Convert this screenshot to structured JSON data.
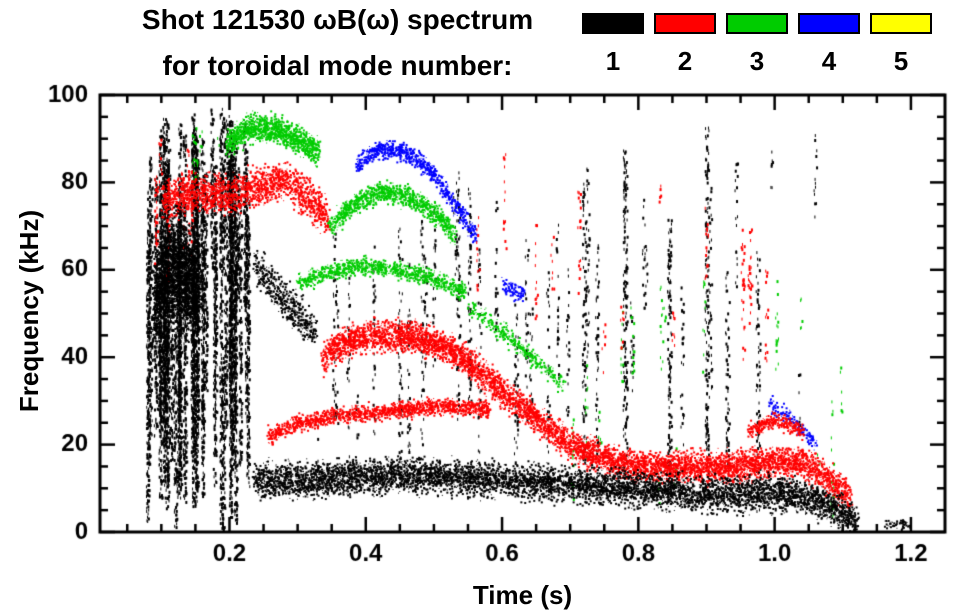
{
  "title": "Shot 121530 ωB(ω) spectrum",
  "subtitle": "for toroidal mode number:",
  "legend": {
    "items": [
      {
        "label": "1",
        "color": "#000000"
      },
      {
        "label": "2",
        "color": "#ff0000"
      },
      {
        "label": "3",
        "color": "#00cc00"
      },
      {
        "label": "4",
        "color": "#0000ff"
      },
      {
        "label": "5",
        "color": "#ffff00"
      }
    ]
  },
  "chart_data": {
    "type": "scatter",
    "title": "Shot 121530 ωB(ω) spectrum",
    "subtitle": "for toroidal mode number:",
    "xlabel": "Time (s)",
    "ylabel": "Frequency (kHz)",
    "xlim": [
      0.01,
      1.25
    ],
    "ylim": [
      0,
      100
    ],
    "xticks": [
      0.2,
      0.4,
      0.6,
      0.8,
      1.0,
      1.2
    ],
    "xtick_labels": [
      "0.2",
      "0.4",
      "0.6",
      "0.8",
      "1.0",
      "1.2"
    ],
    "yticks": [
      0,
      20,
      40,
      60,
      80,
      100
    ],
    "ytick_labels": [
      "0",
      "20",
      "40",
      "60",
      "80",
      "100"
    ],
    "xminor": 0.05,
    "yminor": 5,
    "grid": false,
    "legend_position": "top-right",
    "mode_colors": {
      "1": "#000000",
      "2": "#ff0000",
      "3": "#00cc00",
      "4": "#0000ff",
      "5": "#ffff00"
    },
    "features": [
      {
        "mode": 1,
        "type": "bursts",
        "t0": 0.078,
        "t1": 0.24,
        "f0": 0,
        "f1": 98,
        "cols": 62,
        "minH": 20,
        "maxH": 88,
        "density": 3.0
      },
      {
        "mode": 1,
        "type": "bursts",
        "t0": 0.28,
        "t1": 1.06,
        "f0": 8,
        "f1": 92,
        "cols": 34,
        "minH": 8,
        "maxH": 55,
        "density": 0.9
      },
      {
        "mode": 1,
        "type": "column",
        "t": 0.78,
        "f0": 8,
        "f1": 88,
        "density": 2.2
      },
      {
        "mode": 1,
        "type": "column",
        "t": 0.845,
        "f0": 8,
        "f1": 72,
        "density": 2.0
      },
      {
        "mode": 1,
        "type": "column",
        "t": 0.9,
        "f0": 8,
        "f1": 95,
        "density": 1.6
      },
      {
        "mode": 1,
        "type": "column",
        "t": 0.93,
        "f0": 8,
        "f1": 60,
        "density": 1.2
      },
      {
        "mode": 1,
        "type": "column",
        "t": 0.72,
        "f0": 10,
        "f1": 80,
        "density": 1.4
      },
      {
        "mode": 1,
        "type": "column",
        "t": 0.975,
        "f0": 5,
        "f1": 65,
        "density": 1.2
      },
      {
        "mode": 1,
        "type": "column",
        "t": 0.62,
        "f0": 10,
        "f1": 55,
        "density": 1.0
      },
      {
        "mode": 1,
        "type": "column",
        "t": 0.45,
        "f0": 12,
        "f1": 70,
        "density": 0.9
      },
      {
        "mode": 3,
        "type": "bursts",
        "t0": 0.12,
        "t1": 0.2,
        "f0": 80,
        "f1": 97,
        "cols": 5,
        "minH": 5,
        "maxH": 12,
        "density": 0.8
      },
      {
        "mode": 3,
        "type": "band",
        "pts": [
          [
            0.195,
            89
          ],
          [
            0.23,
            93
          ],
          [
            0.27,
            92
          ],
          [
            0.31,
            89
          ],
          [
            0.33,
            87
          ]
        ],
        "w": 3.5,
        "n": 1200
      },
      {
        "mode": 3,
        "type": "band",
        "pts": [
          [
            0.345,
            70
          ],
          [
            0.38,
            75
          ],
          [
            0.42,
            78
          ],
          [
            0.46,
            77
          ],
          [
            0.5,
            73
          ],
          [
            0.53,
            68
          ]
        ],
        "w": 2.8,
        "n": 1000
      },
      {
        "mode": 3,
        "type": "band",
        "pts": [
          [
            0.3,
            57
          ],
          [
            0.35,
            60
          ],
          [
            0.4,
            61
          ],
          [
            0.45,
            60
          ],
          [
            0.5,
            58
          ],
          [
            0.545,
            55
          ]
        ],
        "w": 2.2,
        "n": 900
      },
      {
        "mode": 3,
        "type": "band",
        "pts": [
          [
            0.55,
            52
          ],
          [
            0.6,
            46
          ],
          [
            0.65,
            39
          ],
          [
            0.69,
            34
          ]
        ],
        "w": 2.5,
        "n": 320
      },
      {
        "mode": 3,
        "type": "bursts",
        "t0": 0.7,
        "t1": 1.12,
        "f0": 2,
        "f1": 62,
        "cols": 16,
        "minH": 5,
        "maxH": 28,
        "density": 0.7
      },
      {
        "mode": 4,
        "type": "band",
        "pts": [
          [
            0.385,
            84
          ],
          [
            0.42,
            88
          ],
          [
            0.46,
            87
          ],
          [
            0.5,
            82
          ],
          [
            0.53,
            75
          ],
          [
            0.56,
            68
          ]
        ],
        "w": 2.4,
        "n": 800
      },
      {
        "mode": 4,
        "type": "band",
        "pts": [
          [
            0.6,
            57
          ],
          [
            0.63,
            54
          ]
        ],
        "w": 2,
        "n": 90
      },
      {
        "mode": 4,
        "type": "band",
        "pts": [
          [
            0.99,
            30
          ],
          [
            1.03,
            25
          ],
          [
            1.06,
            20
          ]
        ],
        "w": 2,
        "n": 140
      },
      {
        "mode": 2,
        "type": "bursts",
        "t0": 0.09,
        "t1": 0.16,
        "f0": 55,
        "f1": 92,
        "cols": 8,
        "minH": 10,
        "maxH": 30,
        "density": 1.2
      },
      {
        "mode": 2,
        "type": "band",
        "pts": [
          [
            0.1,
            76
          ],
          [
            0.15,
            78
          ],
          [
            0.2,
            77
          ],
          [
            0.24,
            79
          ],
          [
            0.28,
            81
          ],
          [
            0.32,
            76
          ],
          [
            0.345,
            72
          ]
        ],
        "w": 5,
        "n": 1800
      },
      {
        "mode": 2,
        "type": "band",
        "pts": [
          [
            0.255,
            22
          ],
          [
            0.3,
            25
          ],
          [
            0.36,
            27
          ],
          [
            0.45,
            28
          ],
          [
            0.52,
            29
          ],
          [
            0.58,
            28
          ]
        ],
        "w": 2.2,
        "n": 1400
      },
      {
        "mode": 2,
        "type": "band",
        "pts": [
          [
            0.335,
            40
          ],
          [
            0.37,
            44
          ],
          [
            0.42,
            45
          ],
          [
            0.47,
            45
          ],
          [
            0.51,
            43
          ],
          [
            0.55,
            39
          ],
          [
            0.6,
            32
          ],
          [
            0.65,
            26
          ],
          [
            0.7,
            20
          ],
          [
            0.75,
            17
          ],
          [
            0.8,
            15
          ],
          [
            0.87,
            15
          ],
          [
            0.93,
            15
          ],
          [
            0.99,
            16
          ],
          [
            1.04,
            16
          ],
          [
            1.08,
            12
          ],
          [
            1.11,
            8
          ]
        ],
        "w": 4,
        "n": 6000
      },
      {
        "mode": 2,
        "type": "bursts",
        "t0": 0.56,
        "t1": 1.0,
        "f0": 28,
        "f1": 90,
        "cols": 16,
        "minH": 6,
        "maxH": 30,
        "density": 0.8
      },
      {
        "mode": 2,
        "type": "band",
        "pts": [
          [
            0.96,
            23
          ],
          [
            1.0,
            26
          ],
          [
            1.04,
            23
          ]
        ],
        "w": 2,
        "n": 280
      },
      {
        "mode": 1,
        "type": "band",
        "pts": [
          [
            0.088,
            52
          ],
          [
            0.1,
            58
          ],
          [
            0.12,
            60
          ],
          [
            0.14,
            58
          ],
          [
            0.155,
            55
          ]
        ],
        "w": 14,
        "n": 2600
      },
      {
        "mode": 1,
        "type": "band",
        "pts": [
          [
            0.235,
            62
          ],
          [
            0.27,
            55
          ],
          [
            0.3,
            50
          ],
          [
            0.325,
            46
          ]
        ],
        "w": 5,
        "n": 500
      },
      {
        "mode": 1,
        "type": "band",
        "pts": [
          [
            0.235,
            12
          ],
          [
            0.3,
            12
          ],
          [
            0.4,
            13
          ],
          [
            0.5,
            13
          ],
          [
            0.6,
            12
          ],
          [
            0.7,
            11
          ],
          [
            0.8,
            10
          ],
          [
            0.88,
            9
          ],
          [
            0.95,
            9
          ],
          [
            1.0,
            9
          ],
          [
            1.05,
            8
          ],
          [
            1.09,
            5
          ],
          [
            1.12,
            2
          ]
        ],
        "w": 4.5,
        "n": 6500
      },
      {
        "mode": 1,
        "type": "band",
        "pts": [
          [
            1.16,
            2
          ],
          [
            1.195,
            2
          ]
        ],
        "w": 1.5,
        "n": 50
      }
    ]
  }
}
